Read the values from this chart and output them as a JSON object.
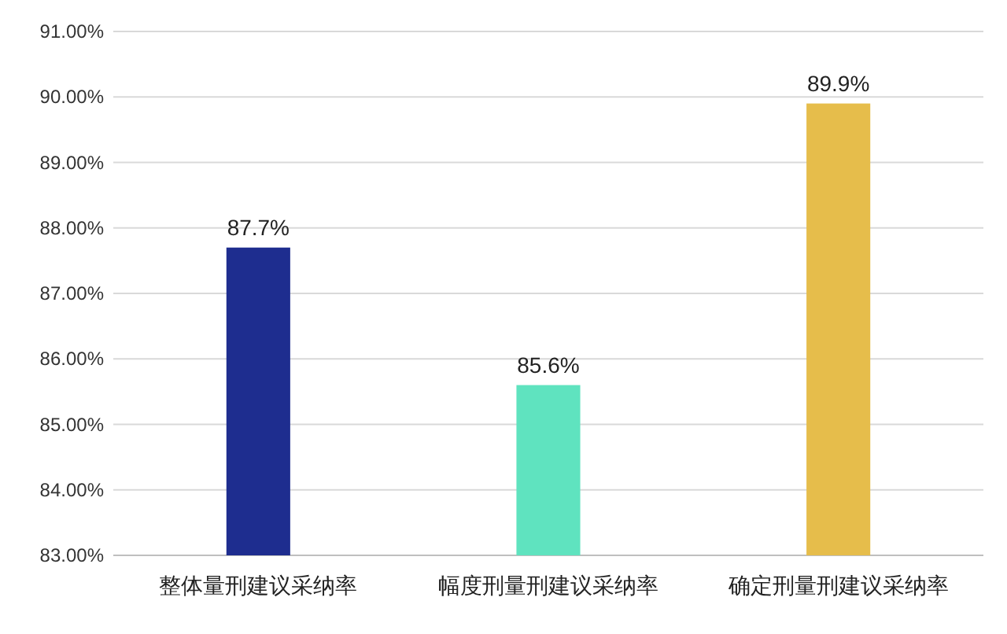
{
  "chart_data": {
    "type": "bar",
    "categories": [
      "整体量刑建议采纳率",
      "幅度刑量刑建议采纳率",
      "确定刑量刑建议采纳率"
    ],
    "values": [
      87.7,
      85.6,
      89.9
    ],
    "colors": [
      "#1e2d8f",
      "#5fe3bf",
      "#e6bd4b"
    ],
    "value_labels": [
      "87.7%",
      "85.6%",
      "89.9%"
    ],
    "ylim": [
      83,
      91
    ],
    "yticks": [
      {
        "value": 83,
        "label": "83.00%"
      },
      {
        "value": 84,
        "label": "84.00%"
      },
      {
        "value": 85,
        "label": "85.00%"
      },
      {
        "value": 86,
        "label": "86.00%"
      },
      {
        "value": 87,
        "label": "87.00%"
      },
      {
        "value": 88,
        "label": "88.00%"
      },
      {
        "value": 89,
        "label": "89.00%"
      },
      {
        "value": 90,
        "label": "90.00%"
      },
      {
        "value": 91,
        "label": "91.00%"
      }
    ],
    "grid": "y"
  }
}
